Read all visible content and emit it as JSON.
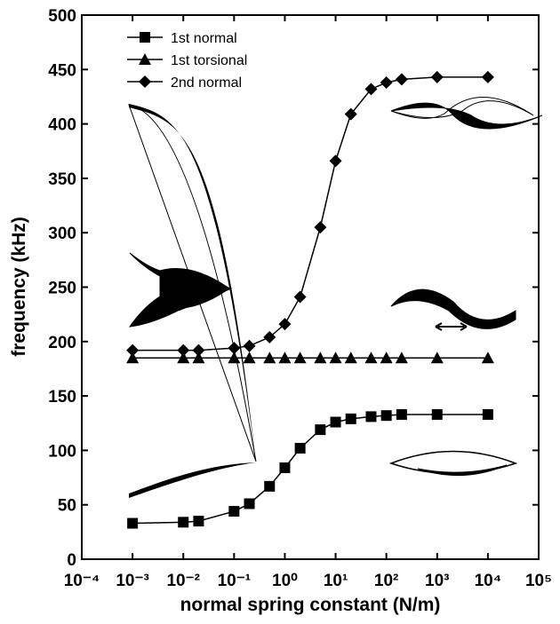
{
  "chart_data": {
    "type": "line",
    "x_label": "normal spring constant (N/m)",
    "y_label": "frequency (kHz)",
    "x_log": true,
    "x": [
      0.001,
      0.01,
      0.02,
      0.1,
      0.2,
      0.5,
      1,
      2,
      5,
      10,
      20,
      50,
      100,
      200,
      1000,
      10000
    ],
    "series": [
      {
        "name": "1st normal",
        "marker": "square",
        "color": "#000000",
        "values": [
          33,
          34,
          35,
          44,
          51,
          67,
          84,
          102,
          119,
          126,
          129,
          131,
          132,
          133,
          133,
          133
        ]
      },
      {
        "name": "1st torsional",
        "marker": "triangle",
        "color": "#000000",
        "values": [
          185,
          185,
          185,
          185,
          185,
          185,
          185,
          185,
          185,
          185,
          185,
          185,
          185,
          185,
          185,
          185
        ]
      },
      {
        "name": "2nd normal",
        "marker": "diamond",
        "color": "#000000",
        "values": [
          192,
          192,
          192,
          194,
          196,
          204,
          216,
          241,
          305,
          366,
          409,
          432,
          438,
          441,
          443,
          443
        ]
      }
    ],
    "xlim": [
      0.0001,
      100000
    ],
    "xticks": [
      {
        "value": 0.0001,
        "label": "10⁻⁴"
      },
      {
        "value": 0.001,
        "label": "10⁻³"
      },
      {
        "value": 0.01,
        "label": "10⁻²"
      },
      {
        "value": 0.1,
        "label": "10⁻¹"
      },
      {
        "value": 1,
        "label": "10⁰"
      },
      {
        "value": 10,
        "label": "10¹"
      },
      {
        "value": 100,
        "label": "10²"
      },
      {
        "value": 1000,
        "label": "10³"
      },
      {
        "value": 10000,
        "label": "10⁴"
      },
      {
        "value": 100000,
        "label": "10⁵"
      }
    ],
    "ylim": [
      0,
      500
    ],
    "yticks": [
      0,
      50,
      100,
      150,
      200,
      250,
      300,
      350,
      400,
      450,
      500
    ],
    "legend": "top-left"
  }
}
